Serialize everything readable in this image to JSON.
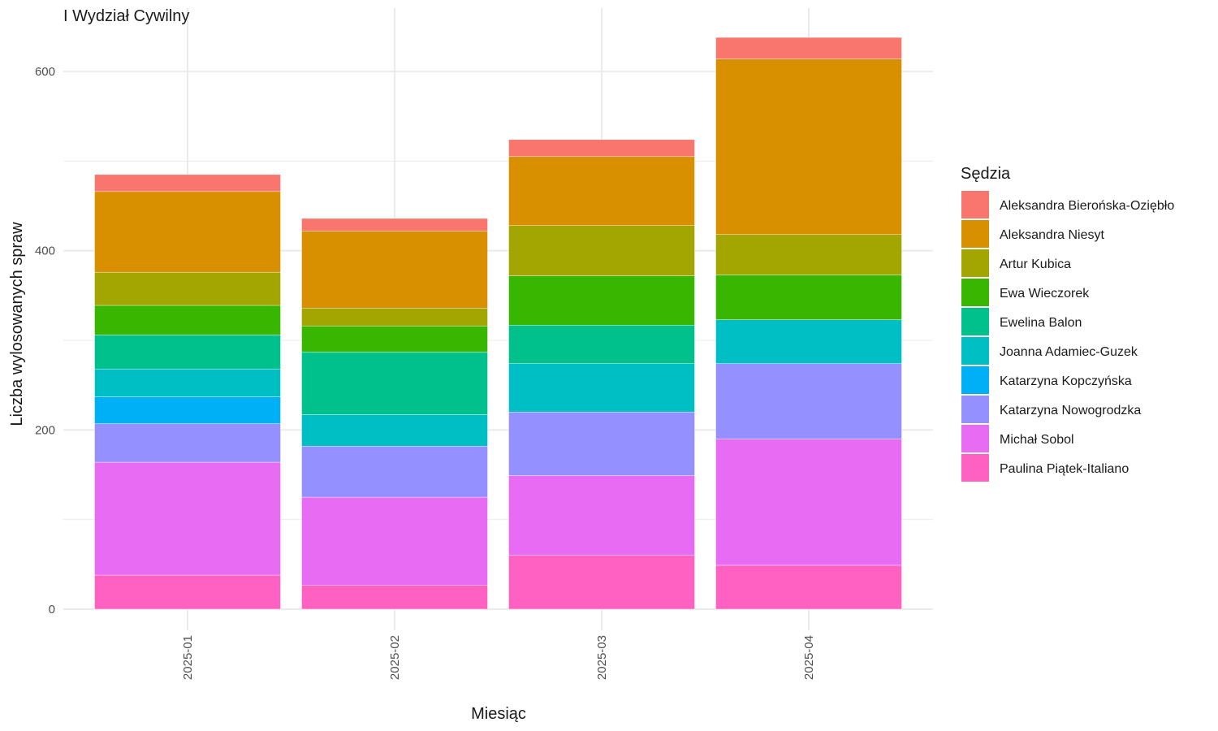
{
  "chart_data": {
    "type": "bar",
    "stacked": true,
    "title": "I Wydział Cywilny",
    "xlabel": "Miesiąc",
    "ylabel": "Liczba wylosowanych spraw",
    "ylim": [
      0,
      650
    ],
    "yticks": [
      0,
      200,
      400,
      600
    ],
    "grid": true,
    "legend_title": "Sędzia",
    "legend_position": "right",
    "categories": [
      "2025-01",
      "2025-02",
      "2025-03",
      "2025-04"
    ],
    "series": [
      {
        "name": "Paulina Piątek-Italiano",
        "color": "#FF61C3",
        "values": [
          38,
          27,
          60,
          49
        ]
      },
      {
        "name": "Michał Sobol",
        "color": "#E76BF3",
        "values": [
          126,
          98,
          89,
          141
        ]
      },
      {
        "name": "Katarzyna Nowogrodzka",
        "color": "#9590FF",
        "values": [
          43,
          57,
          71,
          84
        ]
      },
      {
        "name": "Katarzyna Kopczyńska",
        "color": "#00B0F6",
        "values": [
          30,
          0,
          0,
          0
        ]
      },
      {
        "name": "Joanna Adamiec-Guzek",
        "color": "#00BFC4",
        "values": [
          31,
          35,
          54,
          49
        ]
      },
      {
        "name": "Ewelina Balon",
        "color": "#00C08B",
        "values": [
          38,
          70,
          43,
          0
        ]
      },
      {
        "name": "Ewa Wieczorek",
        "color": "#39B600",
        "values": [
          33,
          29,
          55,
          50
        ]
      },
      {
        "name": "Artur Kubica",
        "color": "#A3A500",
        "values": [
          37,
          20,
          56,
          45
        ]
      },
      {
        "name": "Aleksandra Niesyt",
        "color": "#D89000",
        "values": [
          90,
          86,
          77,
          196
        ]
      },
      {
        "name": "Aleksandra Bierońska-Oziębło",
        "color": "#F8766D",
        "values": [
          19,
          14,
          19,
          24
        ]
      }
    ]
  }
}
